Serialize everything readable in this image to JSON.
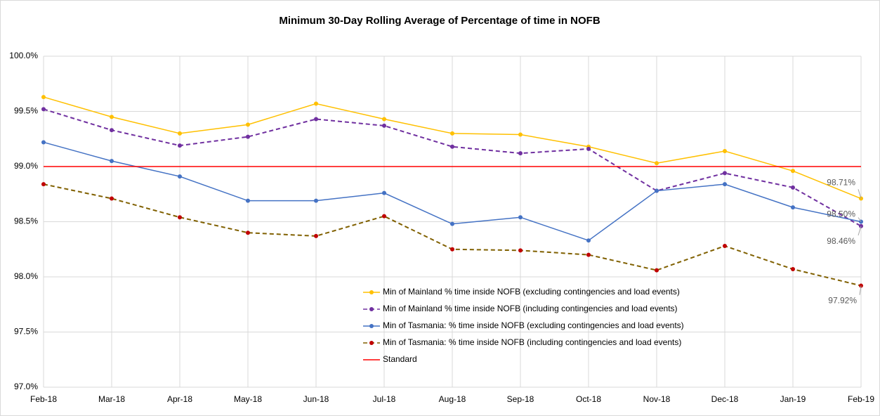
{
  "chart_data": {
    "type": "line",
    "title": "Minimum 30-Day Rolling Average of Percentage of time in NOFB",
    "categories": [
      "Feb-18",
      "Mar-18",
      "Apr-18",
      "May-18",
      "Jun-18",
      "Jul-18",
      "Aug-18",
      "Sep-18",
      "Oct-18",
      "Nov-18",
      "Dec-18",
      "Jan-19",
      "Feb-19"
    ],
    "series": [
      {
        "name": "Min of Mainland % time inside NOFB (excluding contingencies and load events)",
        "color": "#ffc000",
        "dashed": false,
        "markers": true,
        "values": [
          99.63,
          99.45,
          99.3,
          99.38,
          99.57,
          99.43,
          99.3,
          99.29,
          99.18,
          99.03,
          99.14,
          98.96,
          98.71
        ],
        "value_labels": [
          null,
          null,
          null,
          null,
          null,
          null,
          null,
          null,
          null,
          null,
          null,
          null,
          "98.71%"
        ]
      },
      {
        "name": "Min of Mainland % time inside NOFB (including contingencies and load events)",
        "color": "#7030a0",
        "dashed": true,
        "markers": true,
        "values": [
          99.52,
          99.33,
          99.19,
          99.27,
          99.43,
          99.37,
          99.18,
          99.12,
          99.16,
          98.78,
          98.94,
          98.81,
          98.46
        ],
        "value_labels": [
          null,
          null,
          null,
          null,
          null,
          null,
          null,
          null,
          null,
          null,
          null,
          null,
          "98.46%"
        ]
      },
      {
        "name": "Min of Tasmania: % time inside NOFB  (excluding contingencies and load events)",
        "color": "#4472c4",
        "dashed": false,
        "markers": true,
        "values": [
          99.22,
          99.05,
          98.91,
          98.69,
          98.69,
          98.76,
          98.48,
          98.54,
          98.33,
          98.78,
          98.84,
          98.63,
          98.5
        ],
        "value_labels": [
          null,
          null,
          null,
          null,
          null,
          null,
          null,
          null,
          null,
          null,
          null,
          null,
          "98.50%"
        ]
      },
      {
        "name": "Min of Tasmania: % time inside NOFB  (including contingencies and load events)",
        "color": "#806000",
        "dashed": true,
        "markers": true,
        "values": [
          98.84,
          98.71,
          98.54,
          98.4,
          98.37,
          98.55,
          98.25,
          98.24,
          98.2,
          98.06,
          98.28,
          98.07,
          97.92
        ],
        "value_labels": [
          null,
          null,
          null,
          null,
          null,
          null,
          null,
          null,
          null,
          null,
          null,
          null,
          "97.92%"
        ]
      },
      {
        "name": "Standard",
        "color": "#ff0000",
        "dashed": false,
        "markers": false,
        "values": [
          99,
          99,
          99,
          99,
          99,
          99,
          99,
          99,
          99,
          99,
          99,
          99,
          99
        ]
      }
    ],
    "ylim": [
      97,
      100
    ],
    "yticks": [
      {
        "value": 97,
        "label": "97.0%"
      },
      {
        "value": 97.5,
        "label": "97.5%"
      },
      {
        "value": 98,
        "label": "98.0%"
      },
      {
        "value": 98.5,
        "label": "98.5%"
      },
      {
        "value": 99,
        "label": "99.0%"
      },
      {
        "value": 99.5,
        "label": "99.5%"
      },
      {
        "value": 100,
        "label": "100.0%"
      }
    ],
    "grid": true,
    "legend": "lower center"
  }
}
